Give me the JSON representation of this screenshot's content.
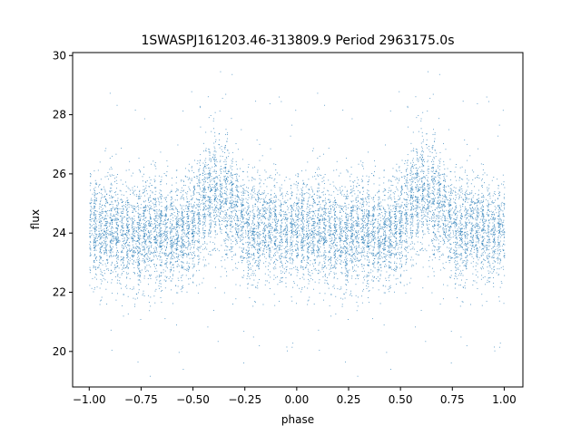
{
  "chart_data": {
    "type": "scatter",
    "title": "1SWASPJ161203.46-313809.9 Period 2963175.0s",
    "xlabel": "phase",
    "ylabel": "flux",
    "xlim": [
      -1.08,
      1.09
    ],
    "ylim": [
      18.8,
      30.1
    ],
    "xticks": [
      -1.0,
      -0.75,
      -0.5,
      -0.25,
      0.0,
      0.25,
      0.5,
      0.75,
      1.0
    ],
    "xtick_labels": [
      "−1.00",
      "−0.75",
      "−0.50",
      "−0.25",
      "0.00",
      "0.25",
      "0.50",
      "0.75",
      "1.00"
    ],
    "yticks": [
      20,
      22,
      24,
      26,
      28,
      30
    ],
    "ytick_labels": [
      "20",
      "22",
      "24",
      "26",
      "28",
      "30"
    ],
    "grid": false,
    "point_color": "#1f77b4",
    "series": [
      {
        "points_per_phase_cycle_profile": {
          "phase": [
            0.0,
            0.05,
            0.1,
            0.15,
            0.2,
            0.25,
            0.3,
            0.35,
            0.4,
            0.45,
            0.5,
            0.55,
            0.6,
            0.65,
            0.7,
            0.75,
            0.8,
            0.85,
            0.9,
            0.95,
            1.0
          ],
          "median_flux": [
            24.1,
            24.0,
            24.2,
            24.0,
            23.9,
            24.0,
            24.2,
            24.0,
            23.9,
            24.0,
            24.4,
            25.0,
            25.3,
            25.2,
            24.8,
            24.2,
            24.0,
            24.2,
            24.0,
            24.1,
            24.1
          ],
          "spread": [
            1.0,
            1.1,
            1.0,
            1.1,
            1.0,
            1.1,
            1.2,
            1.1,
            1.0,
            1.0,
            1.1,
            1.2,
            1.2,
            1.2,
            1.1,
            1.0,
            1.1,
            1.0,
            1.1,
            1.0,
            1.0
          ]
        }
      }
    ]
  }
}
